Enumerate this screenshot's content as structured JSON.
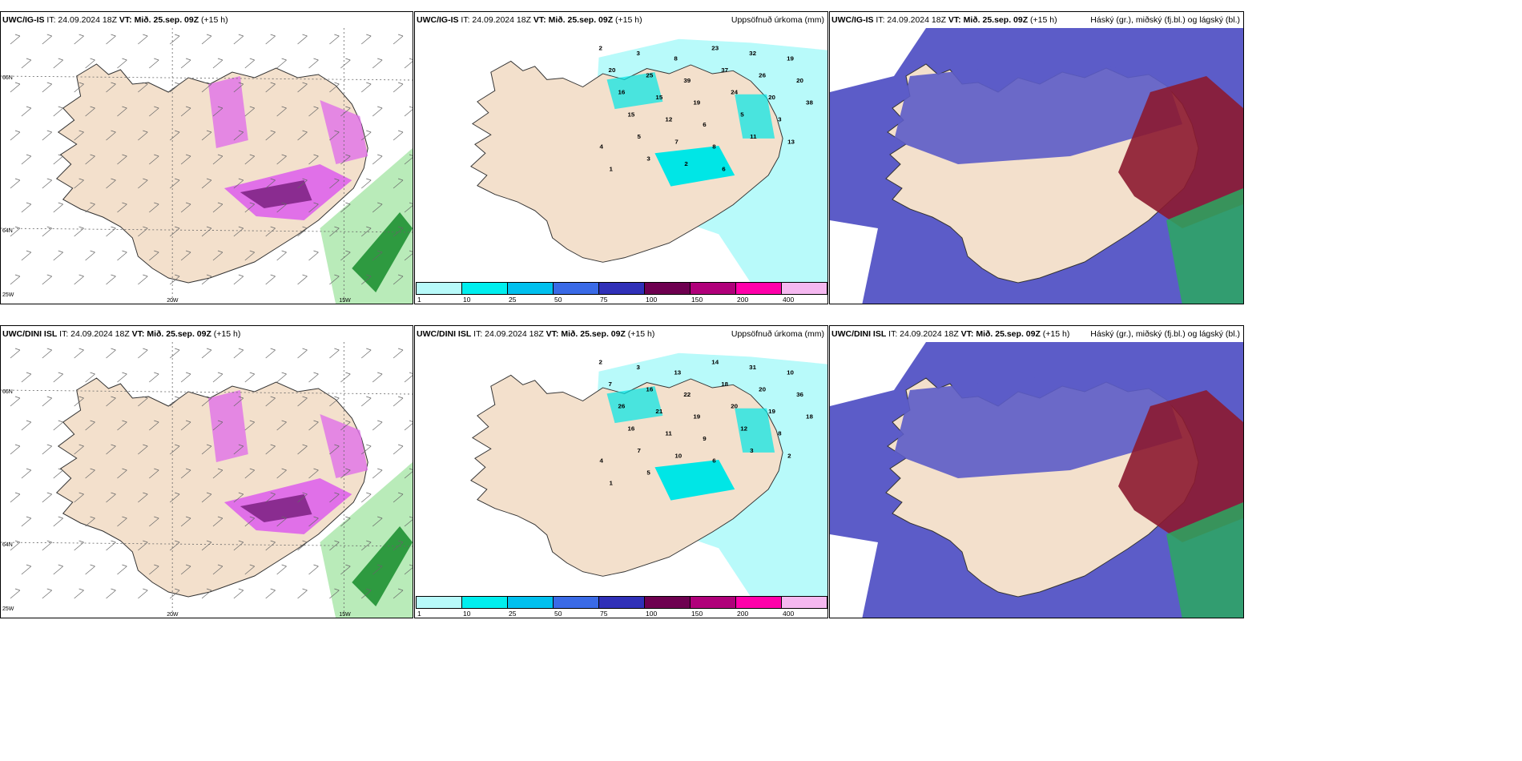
{
  "panels": [
    {
      "model": "UWC/IG-IS",
      "it": "IT: 24.09.2024 18Z",
      "vt": "VT: Mið. 25.sep. 09Z",
      "lead": "(+15 h)",
      "right_title": ""
    },
    {
      "model": "UWC/IG-IS",
      "it": "IT: 24.09.2024 18Z",
      "vt": "VT: Mið. 25.sep. 09Z",
      "lead": "(+15 h)",
      "right_title": "Uppsöfnuð úrkoma (mm)"
    },
    {
      "model": "UWC/IG-IS",
      "it": "IT: 24.09.2024 18Z",
      "vt": "VT: Mið. 25.sep. 09Z",
      "lead": "(+15 h)",
      "right_title": "Háský (gr.), miðský (fj.bl.) og lágský (bl.)"
    },
    {
      "model": "UWC/DINI ISL",
      "it": "IT: 24.09.2024 18Z",
      "vt": "VT: Mið. 25.sep. 09Z",
      "lead": "(+15 h)",
      "right_title": ""
    },
    {
      "model": "UWC/DINI ISL",
      "it": "IT: 24.09.2024 18Z",
      "vt": "VT: Mið. 25.sep. 09Z",
      "lead": "(+15 h)",
      "right_title": "Uppsöfnuð úrkoma (mm)"
    },
    {
      "model": "UWC/DINI ISL",
      "it": "IT: 24.09.2024 18Z",
      "vt": "VT: Mið. 25.sep. 09Z",
      "lead": "(+15 h)",
      "right_title": "Háský (gr.), miðský (fj.bl.) og lágský (bl.)"
    }
  ],
  "graticule": {
    "lat_66": "66N",
    "lat_64": "64N",
    "lon_25": "25W",
    "lon_20": "20W",
    "lon_15": "15W"
  },
  "colorbar": {
    "labels": [
      "1",
      "10",
      "25",
      "50",
      "75",
      "100",
      "150",
      "200",
      "400"
    ],
    "colors": [
      "#b8fafa",
      "#00eeee",
      "#00c0ee",
      "#3a6ae6",
      "#3030b8",
      "#6e0050",
      "#b0007a",
      "#ff00aa",
      "#f5b8f0"
    ]
  },
  "colors": {
    "land": "#f3e0cc",
    "precip_light": "#b8fafa",
    "precip_mid": "#00e6e6",
    "snow_pink": "#e070e8",
    "snow_dark": "#8a2c90",
    "rain_green": "#2e9a40",
    "high_cloud": "#5c5cc8",
    "mid_cloud": "#8c1a30",
    "low_cloud": "#2aa860"
  },
  "precip_labels_top": [
    "2",
    "3",
    "8",
    "23",
    "32",
    "19",
    "20",
    "25",
    "39",
    "37",
    "26",
    "20",
    "16",
    "15",
    "19",
    "24",
    "20",
    "38",
    "15",
    "12",
    "6",
    "5",
    "3",
    "4",
    "5",
    "7",
    "8",
    "11",
    "13",
    "1",
    "3",
    "2",
    "6"
  ],
  "precip_labels_bottom": [
    "2",
    "3",
    "13",
    "14",
    "31",
    "10",
    "7",
    "16",
    "22",
    "18",
    "20",
    "36",
    "26",
    "21",
    "19",
    "20",
    "19",
    "18",
    "16",
    "11",
    "9",
    "12",
    "8",
    "4",
    "7",
    "10",
    "6",
    "3",
    "2",
    "1",
    "5"
  ]
}
